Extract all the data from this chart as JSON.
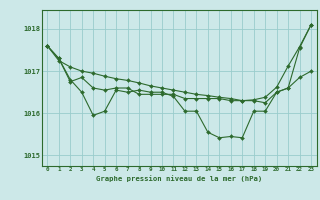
{
  "title": "Graphe pression niveau de la mer (hPa)",
  "background_color": "#cce8e8",
  "grid_color": "#99cccc",
  "line_color": "#2d6a2d",
  "ylim": [
    1014.75,
    1018.45
  ],
  "xlim": [
    -0.5,
    23.5
  ],
  "yticks": [
    1015,
    1016,
    1017,
    1018
  ],
  "xticks": [
    0,
    1,
    2,
    3,
    4,
    5,
    6,
    7,
    8,
    9,
    10,
    11,
    12,
    13,
    14,
    15,
    16,
    17,
    18,
    19,
    20,
    21,
    22,
    23
  ],
  "hours": [
    0,
    1,
    2,
    3,
    4,
    5,
    6,
    7,
    8,
    9,
    10,
    11,
    12,
    13,
    14,
    15,
    16,
    17,
    18,
    19,
    20,
    21,
    22,
    23
  ],
  "series1": [
    1017.6,
    1017.3,
    1016.8,
    1016.5,
    1015.95,
    1016.05,
    1016.55,
    1016.5,
    1016.55,
    1016.5,
    1016.5,
    1016.4,
    1016.05,
    1016.05,
    1015.55,
    1015.42,
    1015.45,
    1015.42,
    1016.05,
    1016.05,
    1016.5,
    1016.6,
    1017.55,
    1018.1
  ],
  "series2": [
    1017.6,
    1017.3,
    1016.75,
    1016.85,
    1016.6,
    1016.55,
    1016.6,
    1016.6,
    1016.45,
    1016.45,
    1016.45,
    1016.45,
    1016.35,
    1016.35,
    1016.35,
    1016.35,
    1016.3,
    1016.3,
    1016.3,
    1016.25,
    1016.5,
    1016.6,
    1016.85,
    1017.0
  ],
  "series3": [
    1017.6,
    1017.25,
    1017.1,
    1017.0,
    1016.95,
    1016.88,
    1016.82,
    1016.78,
    1016.72,
    1016.65,
    1016.6,
    1016.55,
    1016.5,
    1016.45,
    1016.42,
    1016.38,
    1016.35,
    1016.3,
    1016.32,
    1016.38,
    1016.62,
    1017.12,
    1017.58,
    1018.1
  ]
}
